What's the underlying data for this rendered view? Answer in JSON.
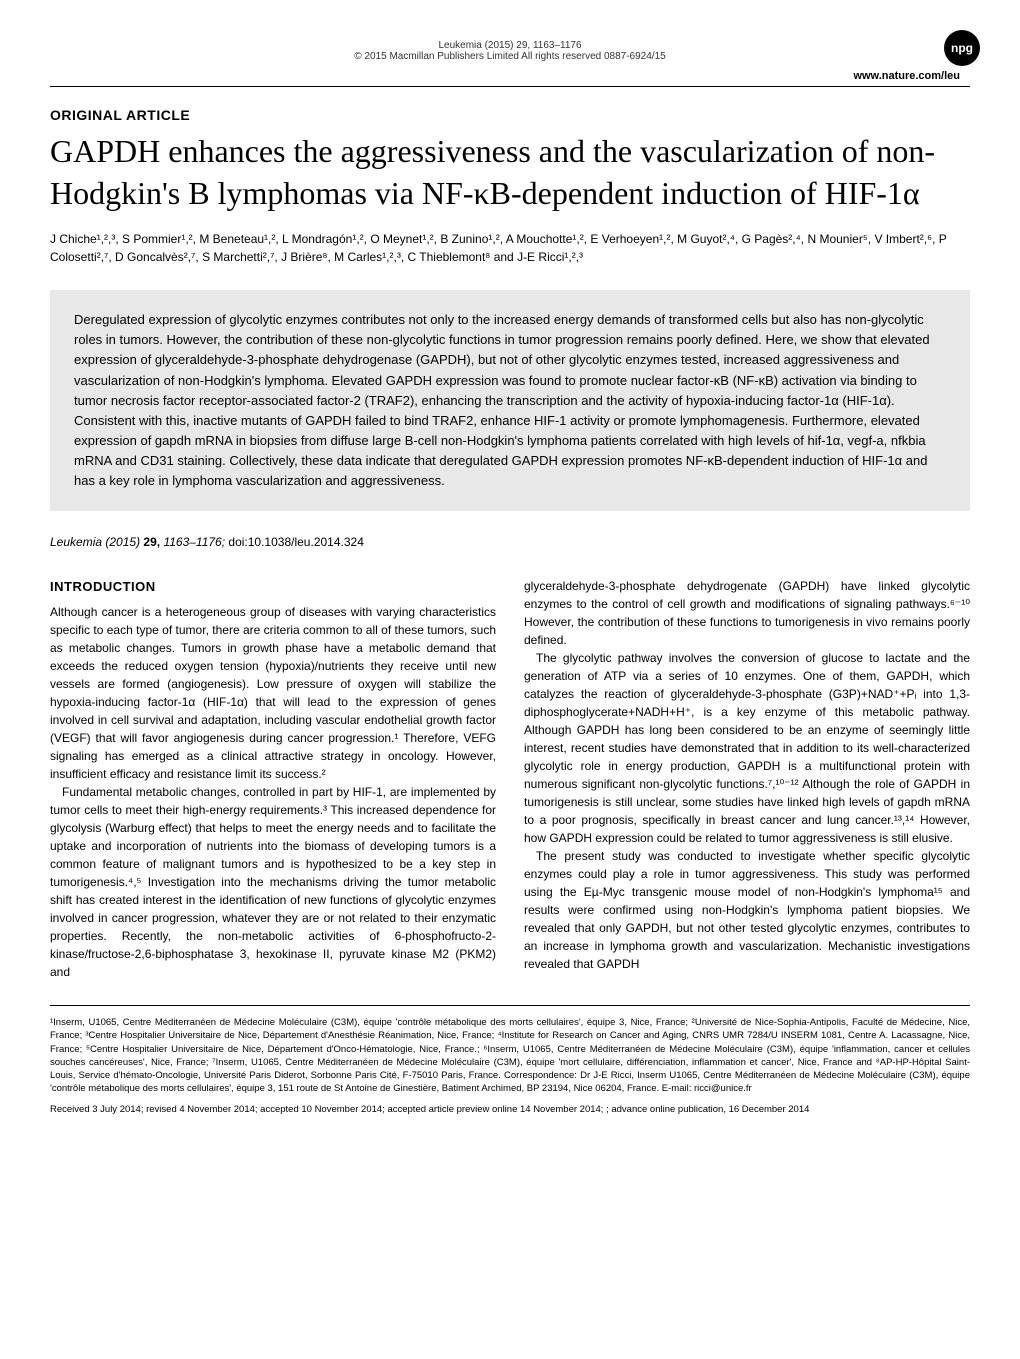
{
  "header": {
    "journal_ref": "Leukemia (2015) 29, 1163–1176",
    "copyright": "© 2015 Macmillan Publishers Limited   All rights reserved 0887-6924/15",
    "url": "www.nature.com/leu",
    "npg": "npg"
  },
  "article_type": "ORIGINAL ARTICLE",
  "title": "GAPDH enhances the aggressiveness and the vascularization of non-Hodgkin's B lymphomas via NF-κB-dependent induction of HIF-1α",
  "authors": "J Chiche¹,²,³, S Pommier¹,², M Beneteau¹,², L Mondragón¹,², O Meynet¹,², B Zunino¹,², A Mouchotte¹,², E Verhoeyen¹,², M Guyot²,⁴, G Pagès²,⁴, N Mounier⁵, V Imbert²,⁶, P Colosetti²,⁷, D Goncalvès²,⁷, S Marchetti²,⁷, J Brière⁸, M Carles¹,²,³, C Thieblemont⁸ and J-E Ricci¹,²,³",
  "abstract": "Deregulated expression of glycolytic enzymes contributes not only to the increased energy demands of transformed cells but also has non-glycolytic roles in tumors. However, the contribution of these non-glycolytic functions in tumor progression remains poorly defined. Here, we show that elevated expression of glyceraldehyde-3-phosphate dehydrogenase (GAPDH), but not of other glycolytic enzymes tested, increased aggressiveness and vascularization of non-Hodgkin's lymphoma. Elevated GAPDH expression was found to promote nuclear factor-κB (NF-κB) activation via binding to tumor necrosis factor receptor-associated factor-2 (TRAF2), enhancing the transcription and the activity of hypoxia-inducing factor-1α (HIF-1α). Consistent with this, inactive mutants of GAPDH failed to bind TRAF2, enhance HIF-1 activity or promote lymphomagenesis. Furthermore, elevated expression of gapdh mRNA in biopsies from diffuse large B-cell non-Hodgkin's lymphoma patients correlated with high levels of hif-1α, vegf-a, nfkbia mRNA and CD31 staining. Collectively, these data indicate that deregulated GAPDH expression promotes NF-κB-dependent induction of HIF-1α and has a key role in lymphoma vascularization and aggressiveness.",
  "citation": {
    "journal": "Leukemia",
    "year": "(2015)",
    "vol": "29,",
    "pages": "1163–1176;",
    "doi": "doi:10.1038/leu.2014.324"
  },
  "intro_heading": "INTRODUCTION",
  "left_col": {
    "p1": "Although cancer is a heterogeneous group of diseases with varying characteristics specific to each type of tumor, there are criteria common to all of these tumors, such as metabolic changes. Tumors in growth phase have a metabolic demand that exceeds the reduced oxygen tension (hypoxia)/nutrients they receive until new vessels are formed (angiogenesis). Low pressure of oxygen will stabilize the hypoxia-inducing factor-1α (HIF-1α) that will lead to the expression of genes involved in cell survival and adaptation, including vascular endothelial growth factor (VEGF) that will favor angiogenesis during cancer progression.¹ Therefore, VEFG signaling has emerged as a clinical attractive strategy in oncology. However, insufficient efficacy and resistance limit its success.²",
    "p2": "Fundamental metabolic changes, controlled in part by HIF-1, are implemented by tumor cells to meet their high-energy requirements.³ This increased dependence for glycolysis (Warburg effect) that helps to meet the energy needs and to facilitate the uptake and incorporation of nutrients into the biomass of developing tumors is a common feature of malignant tumors and is hypothesized to be a key step in tumorigenesis.⁴,⁵ Investigation into the mechanisms driving the tumor metabolic shift has created interest in the identification of new functions of glycolytic enzymes involved in cancer progression, whatever they are or not related to their enzymatic properties. Recently, the non-metabolic activities of 6-phosphofructo-2-kinase/fructose-2,6-biphosphatase 3, hexokinase II, pyruvate kinase M2 (PKM2) and"
  },
  "right_col": {
    "p1": "glyceraldehyde-3-phosphate dehydrogenate (GAPDH) have linked glycolytic enzymes to the control of cell growth and modifications of signaling pathways.⁶⁻¹⁰ However, the contribution of these functions to tumorigenesis in vivo remains poorly defined.",
    "p2": "The glycolytic pathway involves the conversion of glucose to lactate and the generation of ATP via a series of 10 enzymes. One of them, GAPDH, which catalyzes the reaction of glyceraldehyde-3-phosphate (G3P)+NAD⁺+Pᵢ into 1,3-diphosphoglycerate+NADH+H⁺, is a key enzyme of this metabolic pathway. Although GAPDH has long been considered to be an enzyme of seemingly little interest, recent studies have demonstrated that in addition to its well-characterized glycolytic role in energy production, GAPDH is a multifunctional protein with numerous significant non-glycolytic functions.⁷,¹⁰⁻¹² Although the role of GAPDH in tumorigenesis is still unclear, some studies have linked high levels of gapdh mRNA to a poor prognosis, specifically in breast cancer and lung cancer.¹³,¹⁴ However, how GAPDH expression could be related to tumor aggressiveness is still elusive.",
    "p3": "The present study was conducted to investigate whether specific glycolytic enzymes could play a role in tumor aggressiveness. This study was performed using the Eµ-Myc transgenic mouse model of non-Hodgkin's lymphoma¹⁵ and results were confirmed using non-Hodgkin's lymphoma patient biopsies. We revealed that only GAPDH, but not other tested glycolytic enzymes, contributes to an increase in lymphoma growth and vascularization. Mechanistic investigations revealed that GAPDH"
  },
  "affiliations": "¹Inserm, U1065, Centre Méditerranéen de Médecine Moléculaire (C3M), équipe 'contrôle métabolique des morts cellulaires', équipe 3, Nice, France; ²Université de Nice-Sophia-Antipolis, Faculté de Médecine, Nice, France; ³Centre Hospitalier Universitaire de Nice, Département d'Anesthésie Réanimation, Nice, France; ⁴Institute for Research on Cancer and Aging, CNRS UMR 7284/U INSERM 1081, Centre A. Lacassagne, Nice, France; ⁵Centre Hospitalier Universitaire de Nice, Département d'Onco-Hématologie, Nice, France.; ⁶Inserm, U1065, Centre Méditerranéen de Médecine Moléculaire (C3M), équipe 'inflammation, cancer et cellules souches cancéreuses', Nice, France; ⁷Inserm, U1065, Centre Méditerranéen de Médecine Moléculaire (C3M), équipe 'mort cellulaire, différenciation, inflammation et cancer', Nice, France and ⁸AP-HP-Hôpital Saint-Louis, Service d'hémato-Oncologie, Université Paris Diderot, Sorbonne Paris Cité, F-75010 Paris, France. Correspondence: Dr J-E Ricci, Inserm U1065, Centre Méditerranéen de Médecine Moléculaire (C3M), équipe 'contrôle métabolique des morts cellulaires', équipe 3, 151 route de St Antoine de Ginestière, Batiment Archimed, BP 23194, Nice 06204, France. E-mail: ricci@unice.fr",
  "received": "Received 3 July 2014; revised 4 November 2014; accepted 10 November 2014; accepted article preview online 14 November 2014; ; advance online publication, 16 December 2014"
}
